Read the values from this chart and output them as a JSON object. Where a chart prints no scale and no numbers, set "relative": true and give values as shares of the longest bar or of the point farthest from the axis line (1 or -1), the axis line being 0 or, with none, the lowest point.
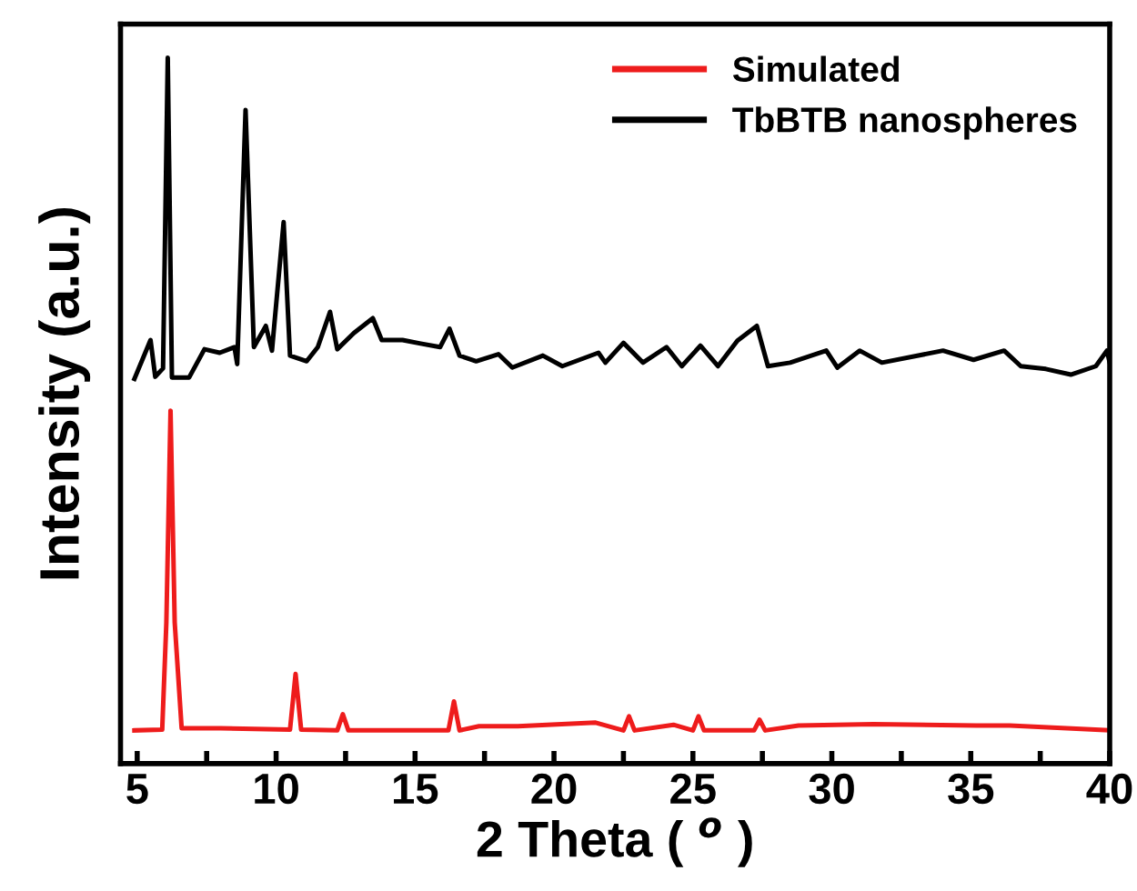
{
  "chart_data": {
    "type": "line",
    "relative": true,
    "xlabel": "2 Theta ( $^{o}$ )",
    "ylabel": "Intensity (a.u.)",
    "xlim": [
      4.4,
      40
    ],
    "xticks": [
      5,
      {
        "value": 7.5,
        "label": null
      },
      10,
      {
        "value": 12.5,
        "label": null
      },
      15,
      {
        "value": 17.5,
        "label": null
      },
      20,
      {
        "value": 22.5,
        "label": null
      },
      25,
      {
        "value": 27.5,
        "label": null
      },
      30,
      {
        "value": 32.5,
        "label": null
      },
      35,
      {
        "value": 37.5,
        "label": null
      },
      40
    ],
    "legend": "top right",
    "grid": false,
    "marker": "none",
    "line_style": "solid",
    "series": [
      {
        "name": "Simulated",
        "color": "#ee1c1c",
        "x": [
          4.9,
          5.9,
          6.05,
          6.2,
          6.35,
          6.6,
          8.0,
          10.5,
          10.7,
          10.9,
          12.2,
          12.4,
          12.6,
          16.2,
          16.4,
          16.6,
          17.3,
          18.7,
          21.5,
          22.5,
          22.7,
          22.9,
          24.3,
          25.0,
          25.2,
          25.4,
          27.2,
          27.4,
          27.6,
          28.8,
          31.5,
          35.2,
          36.4,
          40
        ],
        "values": [
          0.047,
          0.048,
          0.2,
          0.5,
          0.2,
          0.05,
          0.05,
          0.048,
          0.127,
          0.048,
          0.047,
          0.07,
          0.047,
          0.047,
          0.088,
          0.047,
          0.053,
          0.053,
          0.058,
          0.047,
          0.067,
          0.047,
          0.055,
          0.047,
          0.067,
          0.047,
          0.047,
          0.062,
          0.047,
          0.054,
          0.056,
          0.054,
          0.054,
          0.047
        ]
      },
      {
        "name": "TbBTB nanospheres",
        "color": "#000000",
        "x": [
          4.9,
          5.48,
          5.65,
          5.93,
          6.1,
          6.25,
          6.87,
          7.42,
          7.97,
          8.5,
          8.6,
          8.9,
          9.2,
          9.63,
          9.85,
          10.27,
          10.5,
          11.1,
          11.5,
          11.94,
          12.2,
          12.8,
          13.48,
          13.8,
          14.55,
          15.2,
          15.9,
          16.24,
          16.6,
          17.2,
          18.0,
          18.5,
          19.6,
          20.3,
          21.6,
          21.85,
          22.5,
          23.2,
          24.05,
          24.6,
          25.27,
          25.9,
          26.6,
          27.3,
          27.7,
          28.5,
          29.8,
          30.2,
          31.0,
          31.8,
          34.0,
          35.1,
          36.2,
          36.8,
          37.7,
          38.6,
          39.5,
          39.9,
          40.0
        ],
        "values": [
          0.545,
          0.6,
          0.548,
          0.56,
          1.0,
          0.547,
          0.547,
          0.587,
          0.582,
          0.59,
          0.566,
          0.926,
          0.59,
          0.62,
          0.585,
          0.767,
          0.578,
          0.57,
          0.59,
          0.64,
          0.587,
          0.61,
          0.631,
          0.6,
          0.6,
          0.595,
          0.59,
          0.616,
          0.578,
          0.57,
          0.58,
          0.561,
          0.578,
          0.563,
          0.582,
          0.568,
          0.596,
          0.568,
          0.59,
          0.563,
          0.592,
          0.563,
          0.599,
          0.62,
          0.563,
          0.568,
          0.585,
          0.561,
          0.585,
          0.568,
          0.585,
          0.572,
          0.585,
          0.563,
          0.559,
          0.551,
          0.563,
          0.585,
          0.568
        ]
      }
    ]
  }
}
